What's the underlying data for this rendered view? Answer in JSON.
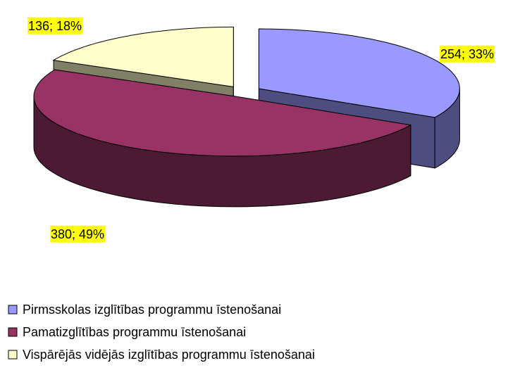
{
  "chart_data": {
    "type": "pie3d",
    "categories": [
      "Pirmsskolas izglītības programmu īstenošanai",
      "Pamatizglītības programmu īstenošanai",
      "Vispārējās vidējās izglītības programmu īstenošanai"
    ],
    "values": [
      254,
      380,
      136
    ],
    "value_labels": [
      "254; 33%",
      "380; 49%",
      "136; 18%"
    ],
    "colors": [
      "#9999ff",
      "#993366",
      "#ffffcc"
    ],
    "legend": "bottom"
  }
}
